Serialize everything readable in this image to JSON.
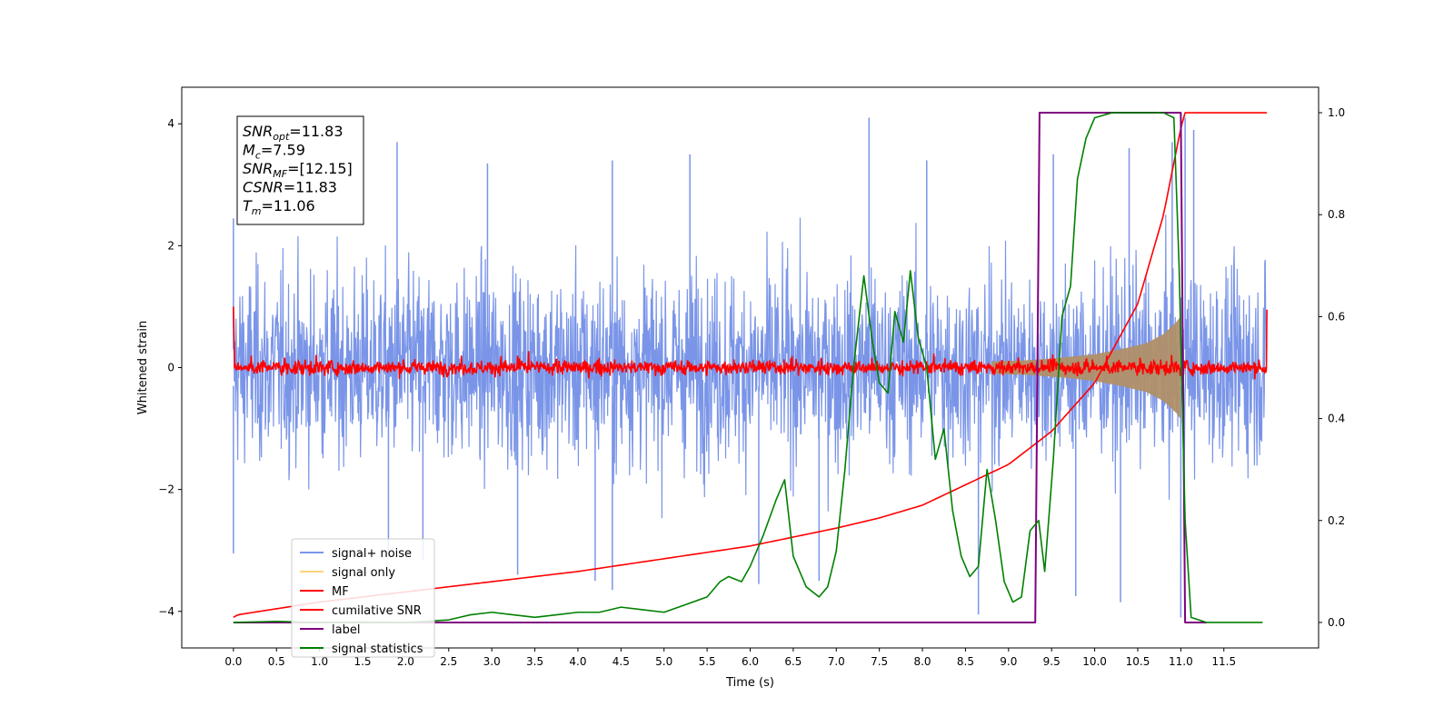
{
  "chart_data": {
    "type": "line",
    "title": "",
    "xlabel": "Time (s)",
    "ylabel": "Whitened strain",
    "xlim": [
      -0.6,
      12.6
    ],
    "ylim_left": [
      -4.6,
      4.6
    ],
    "ylim_right": [
      -0.05,
      1.05
    ],
    "x_ticks": [
      0.0,
      0.5,
      1.0,
      1.5,
      2.0,
      2.5,
      3.0,
      3.5,
      4.0,
      4.5,
      5.0,
      5.5,
      6.0,
      6.5,
      7.0,
      7.5,
      8.0,
      8.5,
      9.0,
      9.5,
      10.0,
      10.5,
      11.0,
      11.5
    ],
    "x_tick_labels": [
      "0.0",
      "0.5",
      "1.0",
      "1.5",
      "2.0",
      "2.5",
      "3.0",
      "3.5",
      "4.0",
      "4.5",
      "5.0",
      "5.5",
      "6.0",
      "6.5",
      "7.0",
      "7.5",
      "8.0",
      "8.5",
      "9.0",
      "9.5",
      "10.0",
      "10.5",
      "11.0",
      "11.5"
    ],
    "y_ticks_left": [
      -4,
      -2,
      0,
      2,
      4
    ],
    "y_tick_labels_left": [
      "−4",
      "−2",
      "0",
      "2",
      "4"
    ],
    "y_ticks_right": [
      0.0,
      0.2,
      0.4,
      0.6,
      0.8,
      1.0
    ],
    "y_tick_labels_right": [
      "0.0",
      "0.2",
      "0.4",
      "0.6",
      "0.8",
      "1.0"
    ],
    "grid": false,
    "legend_placement": "lower-left",
    "legend": [
      {
        "label": "signal+ noise",
        "color": "#7a95e8"
      },
      {
        "label": "signal only",
        "color": "#ffd37a"
      },
      {
        "label": "MF",
        "color": "#ff0000"
      },
      {
        "label": "cumilative SNR",
        "color": "#ff0000"
      },
      {
        "label": "label",
        "color": "#800080"
      },
      {
        "label": "signal statistics",
        "color": "#008000"
      }
    ],
    "annotation": {
      "lines": [
        {
          "base": "SNR",
          "sub": "opt",
          "value": "=11.83"
        },
        {
          "base": "M",
          "sub": "c",
          "value": "=7.59"
        },
        {
          "base": "SNR",
          "sub": "MF",
          "value": "=[12.15]"
        },
        {
          "base": "CSNR",
          "sub": "",
          "value": "=11.83"
        },
        {
          "base": "T",
          "sub": "m",
          "value": "=11.06"
        }
      ]
    },
    "series": [
      {
        "name": "signal+ noise",
        "axis": "left",
        "color": "#7a95e8",
        "duration": 12.0,
        "noise_sigma": 1.0,
        "envelope_peaks": [
          [
            0.0,
            2.45
          ],
          [
            1.9,
            3.7
          ],
          [
            2.95,
            3.35
          ],
          [
            4.4,
            3.4
          ],
          [
            5.3,
            3.5
          ],
          [
            7.38,
            4.1
          ],
          [
            8.05,
            3.4
          ],
          [
            9.52,
            3.5
          ],
          [
            10.4,
            3.6
          ],
          [
            10.9,
            3.7
          ],
          [
            11.05,
            4.1
          ],
          [
            11.15,
            3.9
          ]
        ],
        "envelope_troughs": [
          [
            0.0,
            -3.05
          ],
          [
            1.8,
            -3.1
          ],
          [
            2.2,
            -3.15
          ],
          [
            3.3,
            -3.4
          ],
          [
            4.2,
            -3.5
          ],
          [
            4.4,
            -3.65
          ],
          [
            6.1,
            -3.55
          ],
          [
            6.8,
            -3.5
          ],
          [
            8.65,
            -4.05
          ],
          [
            9.78,
            -3.75
          ],
          [
            10.3,
            -3.85
          ],
          [
            11.0,
            -4.1
          ]
        ]
      },
      {
        "name": "signal only",
        "axis": "left",
        "color": "#c49a6c",
        "fill": "#b08f68",
        "envelope": [
          [
            8.8,
            0.1
          ],
          [
            9.2,
            0.12
          ],
          [
            9.6,
            0.16
          ],
          [
            10.0,
            0.22
          ],
          [
            10.3,
            0.3
          ],
          [
            10.6,
            0.4
          ],
          [
            10.8,
            0.55
          ],
          [
            10.95,
            0.75
          ],
          [
            11.0,
            0.85
          ]
        ]
      },
      {
        "name": "MF",
        "axis": "left",
        "color": "#ff0000",
        "start_value": 1.0,
        "end_value": 0.95,
        "noise_amplitude": 0.06,
        "bursts": [
          [
            0.0,
            1.0
          ],
          [
            0.3,
            0.25
          ],
          [
            6.2,
            0.25
          ],
          [
            11.5,
            0.3
          ]
        ]
      },
      {
        "name": "cumilative SNR",
        "axis": "right",
        "color": "#ff0000",
        "points": [
          [
            0.0,
            0.01
          ],
          [
            0.05,
            0.015
          ],
          [
            1.0,
            0.04
          ],
          [
            2.0,
            0.06
          ],
          [
            3.0,
            0.08
          ],
          [
            4.0,
            0.1
          ],
          [
            5.0,
            0.125
          ],
          [
            6.0,
            0.15
          ],
          [
            7.0,
            0.185
          ],
          [
            7.5,
            0.205
          ],
          [
            8.0,
            0.23
          ],
          [
            8.5,
            0.27
          ],
          [
            9.0,
            0.31
          ],
          [
            9.5,
            0.375
          ],
          [
            10.0,
            0.47
          ],
          [
            10.5,
            0.625
          ],
          [
            10.8,
            0.8
          ],
          [
            11.0,
            0.97
          ],
          [
            11.05,
            1.0
          ],
          [
            12.0,
            1.0
          ]
        ]
      },
      {
        "name": "label",
        "axis": "right",
        "color": "#800080",
        "points": [
          [
            0.0,
            0.0
          ],
          [
            9.31,
            0.0
          ],
          [
            9.36,
            1.0
          ],
          [
            11.0,
            1.0
          ],
          [
            11.05,
            0.0
          ],
          [
            11.3,
            0.0
          ]
        ]
      },
      {
        "name": "signal statistics",
        "axis": "right",
        "color": "#008000",
        "points": [
          [
            0.0,
            0.0
          ],
          [
            0.5,
            0.002
          ],
          [
            1.0,
            0.0
          ],
          [
            1.5,
            0.001
          ],
          [
            2.0,
            0.0
          ],
          [
            2.5,
            0.005
          ],
          [
            2.75,
            0.015
          ],
          [
            3.0,
            0.02
          ],
          [
            3.25,
            0.015
          ],
          [
            3.5,
            0.01
          ],
          [
            3.75,
            0.015
          ],
          [
            4.0,
            0.02
          ],
          [
            4.25,
            0.02
          ],
          [
            4.5,
            0.03
          ],
          [
            4.75,
            0.025
          ],
          [
            5.0,
            0.02
          ],
          [
            5.25,
            0.035
          ],
          [
            5.5,
            0.05
          ],
          [
            5.65,
            0.08
          ],
          [
            5.75,
            0.09
          ],
          [
            5.9,
            0.08
          ],
          [
            6.0,
            0.11
          ],
          [
            6.15,
            0.17
          ],
          [
            6.3,
            0.24
          ],
          [
            6.4,
            0.28
          ],
          [
            6.5,
            0.13
          ],
          [
            6.65,
            0.07
          ],
          [
            6.8,
            0.05
          ],
          [
            6.9,
            0.07
          ],
          [
            7.0,
            0.14
          ],
          [
            7.1,
            0.3
          ],
          [
            7.2,
            0.5
          ],
          [
            7.32,
            0.68
          ],
          [
            7.42,
            0.55
          ],
          [
            7.5,
            0.47
          ],
          [
            7.6,
            0.45
          ],
          [
            7.68,
            0.61
          ],
          [
            7.78,
            0.55
          ],
          [
            7.86,
            0.69
          ],
          [
            7.95,
            0.56
          ],
          [
            8.05,
            0.5
          ],
          [
            8.15,
            0.32
          ],
          [
            8.25,
            0.38
          ],
          [
            8.35,
            0.22
          ],
          [
            8.45,
            0.13
          ],
          [
            8.55,
            0.09
          ],
          [
            8.65,
            0.11
          ],
          [
            8.75,
            0.3
          ],
          [
            8.85,
            0.2
          ],
          [
            8.95,
            0.08
          ],
          [
            9.05,
            0.04
          ],
          [
            9.15,
            0.05
          ],
          [
            9.25,
            0.18
          ],
          [
            9.35,
            0.2
          ],
          [
            9.42,
            0.1
          ],
          [
            9.52,
            0.32
          ],
          [
            9.62,
            0.6
          ],
          [
            9.72,
            0.66
          ],
          [
            9.8,
            0.87
          ],
          [
            9.9,
            0.95
          ],
          [
            10.0,
            0.99
          ],
          [
            10.2,
            1.0
          ],
          [
            10.8,
            1.0
          ],
          [
            10.92,
            0.99
          ],
          [
            10.98,
            0.7
          ],
          [
            11.05,
            0.2
          ],
          [
            11.12,
            0.01
          ],
          [
            11.3,
            0.0
          ],
          [
            11.95,
            0.0
          ]
        ]
      }
    ]
  }
}
